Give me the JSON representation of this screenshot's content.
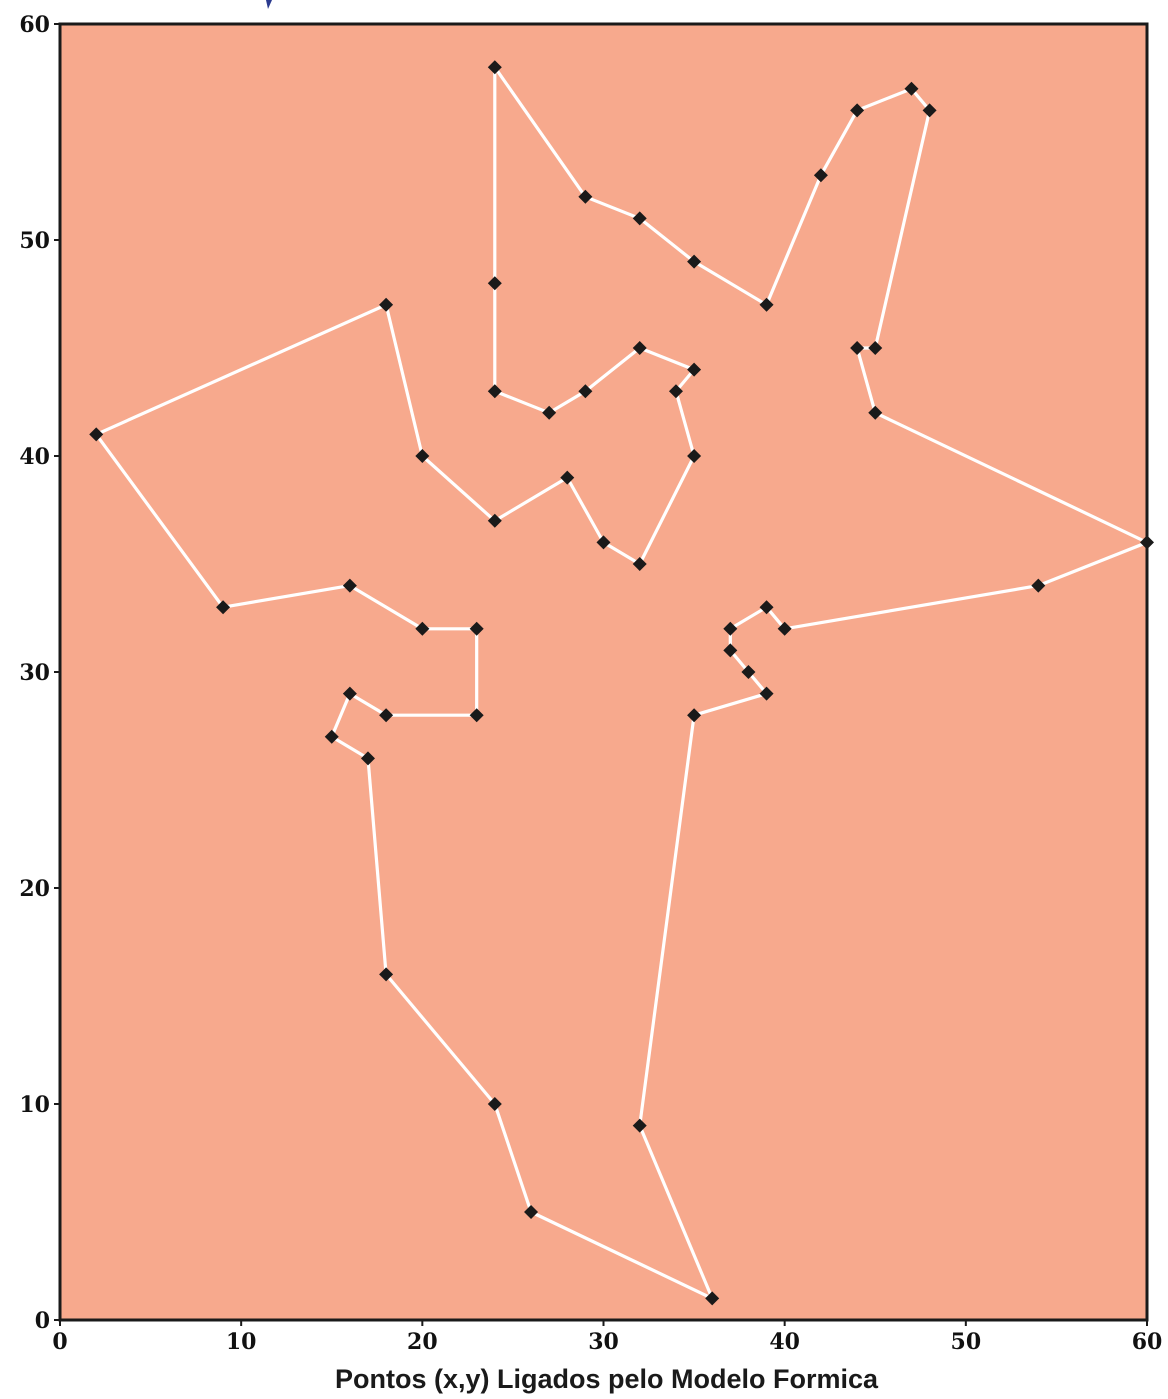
{
  "chart_data": {
    "type": "line",
    "title": "",
    "xlabel": "Pontos (x,y) Ligados pelo Modelo Formica",
    "ylabel": "",
    "xlim": [
      0,
      60
    ],
    "ylim": [
      0,
      60
    ],
    "xticks": [
      0,
      10,
      20,
      30,
      40,
      50,
      60
    ],
    "yticks": [
      0,
      10,
      20,
      30,
      40,
      50,
      60
    ],
    "grid": false,
    "colors": {
      "plot_background": "#f7a98d",
      "line": "#ffffff",
      "marker": "#1a1a1a",
      "frame": "#1a1a1a"
    },
    "series": [
      {
        "closed": true,
        "marker": "diamond",
        "points": [
          [
            24,
            58
          ],
          [
            29,
            52
          ],
          [
            32,
            51
          ],
          [
            35,
            49
          ],
          [
            39,
            47
          ],
          [
            42,
            53
          ],
          [
            44,
            56
          ],
          [
            47,
            57
          ],
          [
            48,
            56
          ],
          [
            45,
            45
          ],
          [
            44,
            45
          ],
          [
            45,
            42
          ],
          [
            60,
            36
          ],
          [
            54,
            34
          ],
          [
            40,
            32
          ],
          [
            39,
            33
          ],
          [
            37,
            32
          ],
          [
            37,
            31
          ],
          [
            38,
            30
          ],
          [
            39,
            29
          ],
          [
            35,
            28
          ],
          [
            32,
            9
          ],
          [
            36,
            1
          ],
          [
            26,
            5
          ],
          [
            24,
            10
          ],
          [
            18,
            16
          ],
          [
            17,
            26
          ],
          [
            15,
            27
          ],
          [
            16,
            29
          ],
          [
            18,
            28
          ],
          [
            23,
            28
          ],
          [
            23,
            32
          ],
          [
            20,
            32
          ],
          [
            16,
            34
          ],
          [
            9,
            33
          ],
          [
            2,
            41
          ],
          [
            18,
            47
          ],
          [
            20,
            40
          ],
          [
            24,
            37
          ],
          [
            28,
            39
          ],
          [
            30,
            36
          ],
          [
            32,
            35
          ],
          [
            35,
            40
          ],
          [
            34,
            43
          ],
          [
            35,
            44
          ],
          [
            32,
            45
          ],
          [
            29,
            43
          ],
          [
            27,
            42
          ],
          [
            24,
            43
          ],
          [
            24,
            48
          ]
        ]
      }
    ]
  }
}
